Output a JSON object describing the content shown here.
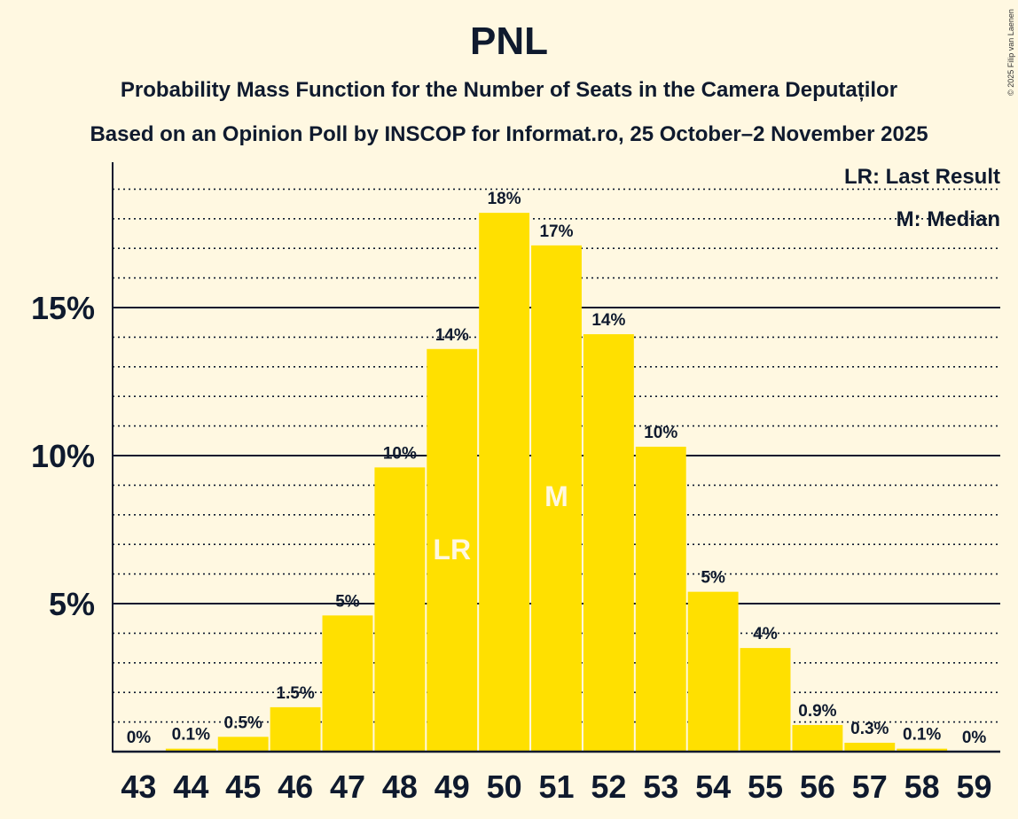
{
  "chart_data": {
    "type": "bar",
    "title": "PNL",
    "subtitle": "Probability Mass Function for the Number of Seats in the Camera Deputaților",
    "subtitle2": "Based on an Opinion Poll by INSCOP for Informat.ro, 25 October–2 November 2025",
    "xlabel": "",
    "ylabel": "",
    "categories": [
      "43",
      "44",
      "45",
      "46",
      "47",
      "48",
      "49",
      "50",
      "51",
      "52",
      "53",
      "54",
      "55",
      "56",
      "57",
      "58",
      "59"
    ],
    "values": [
      0,
      0.1,
      0.5,
      1.5,
      4.6,
      9.6,
      13.6,
      18.2,
      17.1,
      14.1,
      10.3,
      5.4,
      3.5,
      0.9,
      0.3,
      0.1,
      0
    ],
    "value_labels": [
      "0%",
      "0.1%",
      "0.5%",
      "1.5%",
      "5%",
      "10%",
      "14%",
      "18%",
      "17%",
      "14%",
      "10%",
      "5%",
      "4%",
      "0.9%",
      "0.3%",
      "0.1%",
      "0%"
    ],
    "bar_markers": {
      "49": "LR",
      "51": "M"
    },
    "ylim": [
      0,
      20
    ],
    "yticks": [
      5,
      10,
      15
    ],
    "ytick_labels": [
      "5%",
      "10%",
      "15%"
    ],
    "minor_grid_step": 1,
    "grid": true,
    "legend": [
      "LR: Last Result",
      "M: Median"
    ],
    "legend_position": "top-right",
    "bar_color": "#FFE000",
    "background": "#FFF8E1",
    "copyright": "© 2025 Filip van Laenen"
  }
}
